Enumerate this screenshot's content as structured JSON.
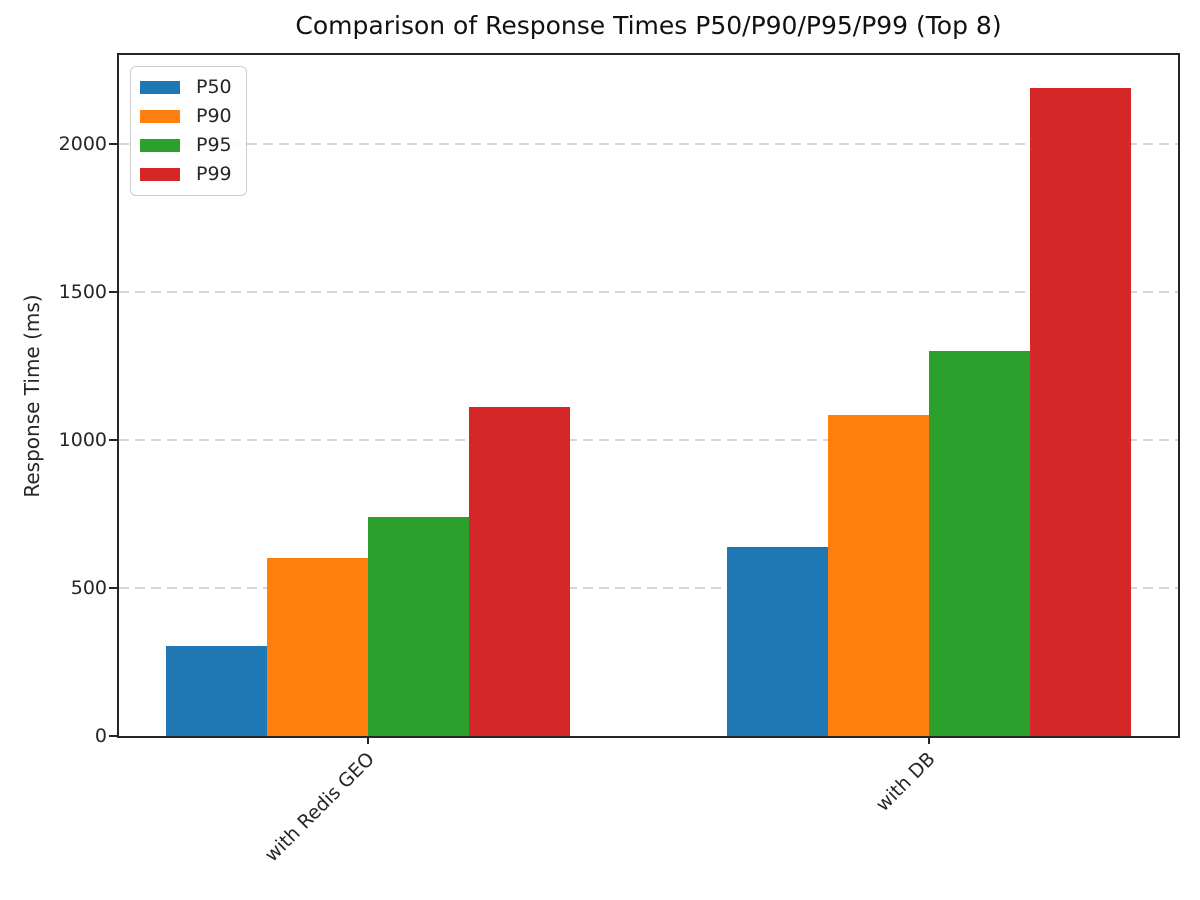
{
  "chart_data": {
    "type": "bar",
    "title": "Comparison of Response Times P50/P90/P95/P99 (Top 8)",
    "xlabel": "",
    "ylabel": "Response Time (ms)",
    "categories": [
      "with Redis GEO",
      "with DB"
    ],
    "series": [
      {
        "name": "P50",
        "color": "#1f77b4",
        "values": [
          305,
          640
        ]
      },
      {
        "name": "P90",
        "color": "#ff7f0e",
        "values": [
          600,
          1085
        ]
      },
      {
        "name": "P95",
        "color": "#2ca02c",
        "values": [
          740,
          1300
        ]
      },
      {
        "name": "P99",
        "color": "#d62728",
        "values": [
          1110,
          2190
        ]
      }
    ],
    "y_ticks": [
      0,
      500,
      1000,
      1500,
      2000
    ],
    "ylim": [
      0,
      2300
    ],
    "grid": "horizontal-dashed",
    "legend_position": "upper-left",
    "x_tick_rotation": 45
  },
  "colors": {
    "axis": "#262626",
    "grid": "#d6d6d6",
    "background": "#ffffff",
    "text": "#262626"
  }
}
